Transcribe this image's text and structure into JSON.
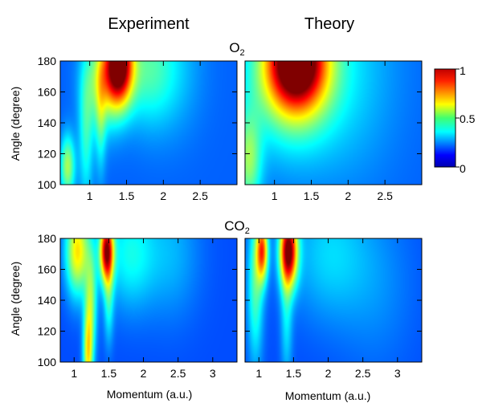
{
  "column_titles": [
    "Experiment",
    "Theory"
  ],
  "ylabel": "Angle (degree)",
  "colorbar": {
    "ticks": [
      "1",
      "0.5",
      "0"
    ],
    "range": [
      0,
      1
    ],
    "colormap": "jet"
  },
  "chart_data": [
    {
      "type": "heatmap",
      "row_title": "O",
      "row_title_sub": "2",
      "panel": "Experiment",
      "xlabel": "",
      "ylabel": "Angle (degree)",
      "xlim": [
        0.6,
        3.0
      ],
      "ylim": [
        100,
        180
      ],
      "xticks": [
        1,
        1.5,
        2,
        2.5
      ],
      "xticklabels": [
        "1",
        "1.5",
        "2",
        "2.5"
      ],
      "yticks": [
        100,
        120,
        140,
        160,
        180
      ],
      "yticklabels": [
        "100",
        "120",
        "140",
        "160",
        "180"
      ],
      "background": 0.22,
      "features": [
        {
          "x": 1.4,
          "y": 178,
          "sx": 0.13,
          "sy": 18,
          "amp": 0.78
        },
        {
          "x": 1.18,
          "y": 168,
          "sx": 0.18,
          "sy": 22,
          "amp": 0.32
        },
        {
          "x": 0.7,
          "y": 112,
          "sx": 0.07,
          "sy": 14,
          "amp": 0.32
        },
        {
          "x": 0.95,
          "y": 130,
          "sx": 0.07,
          "sy": 30,
          "amp": 0.18
        },
        {
          "x": 1.15,
          "y": 140,
          "sx": 0.05,
          "sy": 25,
          "amp": 0.15
        },
        {
          "x": 1.75,
          "y": 175,
          "sx": 0.25,
          "sy": 25,
          "amp": 0.18
        },
        {
          "x": 2.1,
          "y": 175,
          "sx": 0.3,
          "sy": 30,
          "amp": 0.1
        }
      ]
    },
    {
      "type": "heatmap",
      "row_title": "O",
      "row_title_sub": "2",
      "panel": "Theory",
      "xlabel": "",
      "ylabel": "",
      "xlim": [
        0.6,
        3.0
      ],
      "ylim": [
        100,
        180
      ],
      "xticks": [
        1,
        1.5,
        2,
        2.5
      ],
      "xticklabels": [
        "1",
        "1.5",
        "2",
        "2.5"
      ],
      "yticks": [
        100,
        120,
        140,
        160,
        180
      ],
      "yticklabels": [],
      "background": 0.22,
      "features": [
        {
          "x": 1.3,
          "y": 180,
          "sx": 0.28,
          "sy": 22,
          "amp": 0.8
        },
        {
          "x": 1.2,
          "y": 170,
          "sx": 0.45,
          "sy": 35,
          "amp": 0.25
        },
        {
          "x": 0.65,
          "y": 115,
          "sx": 0.12,
          "sy": 22,
          "amp": 0.28
        },
        {
          "x": 2.0,
          "y": 175,
          "sx": 0.5,
          "sy": 50,
          "amp": 0.1
        }
      ]
    },
    {
      "type": "heatmap",
      "row_title": "CO",
      "row_title_sub": "2",
      "panel": "Experiment",
      "xlabel": "Momentum (a.u.)",
      "ylabel": "Angle (degree)",
      "xlim": [
        0.8,
        3.35
      ],
      "ylim": [
        100,
        180
      ],
      "xticks": [
        1,
        1.5,
        2,
        2.5,
        3
      ],
      "xticklabels": [
        "1",
        "1.5",
        "2",
        "2.5",
        "3"
      ],
      "yticks": [
        100,
        120,
        140,
        160,
        180
      ],
      "yticklabels": [
        "100",
        "120",
        "140",
        "160",
        "180"
      ],
      "background": 0.2,
      "features": [
        {
          "x": 1.47,
          "y": 172,
          "sx": 0.07,
          "sy": 14,
          "amp": 0.72
        },
        {
          "x": 1.05,
          "y": 172,
          "sx": 0.12,
          "sy": 20,
          "amp": 0.45
        },
        {
          "x": 1.2,
          "y": 105,
          "sx": 0.05,
          "sy": 22,
          "amp": 0.4
        },
        {
          "x": 1.25,
          "y": 140,
          "sx": 0.06,
          "sy": 25,
          "amp": 0.25
        },
        {
          "x": 1.5,
          "y": 140,
          "sx": 0.05,
          "sy": 20,
          "amp": 0.18
        },
        {
          "x": 1.8,
          "y": 170,
          "sx": 0.25,
          "sy": 25,
          "amp": 0.18
        },
        {
          "x": 2.4,
          "y": 170,
          "sx": 0.3,
          "sy": 30,
          "amp": 0.1
        }
      ]
    },
    {
      "type": "heatmap",
      "row_title": "CO",
      "row_title_sub": "2",
      "panel": "Theory",
      "xlabel": "Momentum (a.u.)",
      "ylabel": "",
      "xlim": [
        0.8,
        3.35
      ],
      "ylim": [
        100,
        180
      ],
      "xticks": [
        1,
        1.5,
        2,
        2.5,
        3
      ],
      "xticklabels": [
        "1",
        "1.5",
        "2",
        "2.5",
        "3"
      ],
      "yticks": [
        100,
        120,
        140,
        160,
        180
      ],
      "yticklabels": [],
      "background": 0.2,
      "features": [
        {
          "x": 1.43,
          "y": 172,
          "sx": 0.09,
          "sy": 16,
          "amp": 0.78
        },
        {
          "x": 1.05,
          "y": 172,
          "sx": 0.06,
          "sy": 14,
          "amp": 0.55
        },
        {
          "x": 0.95,
          "y": 150,
          "sx": 0.08,
          "sy": 35,
          "amp": 0.25
        },
        {
          "x": 1.4,
          "y": 130,
          "sx": 0.06,
          "sy": 30,
          "amp": 0.15
        },
        {
          "x": 2.0,
          "y": 170,
          "sx": 0.4,
          "sy": 30,
          "amp": 0.13
        },
        {
          "x": 2.7,
          "y": 150,
          "sx": 0.4,
          "sy": 40,
          "amp": 0.06
        }
      ]
    }
  ]
}
